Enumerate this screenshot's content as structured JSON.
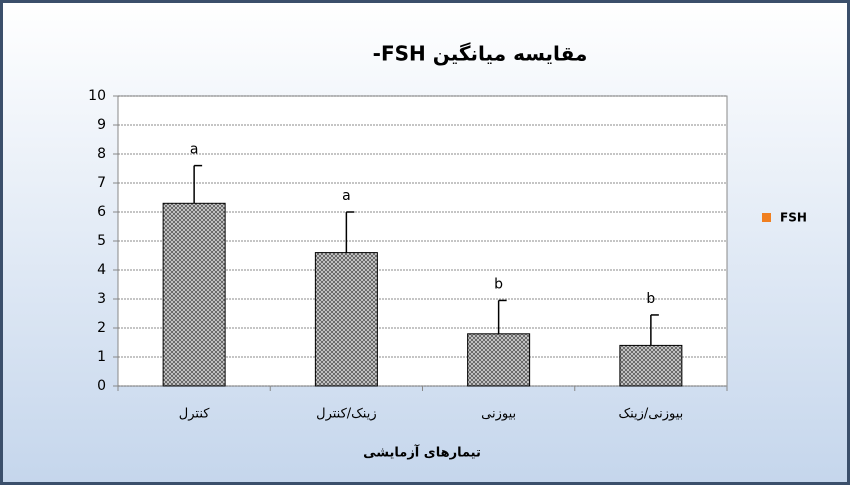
{
  "chart_data": {
    "type": "bar",
    "title": "مقایسه میانگین FSH-",
    "x_label": "تیمارهای آزمایشی",
    "categories": [
      "کنترل",
      "زینک/کنترل",
      "بیوزنی",
      "بیوزنی/زینک"
    ],
    "series": [
      {
        "name": "FSH",
        "color": "#7f7f7f",
        "legend_color": "#f07f20",
        "values": [
          6.3,
          4.6,
          1.8,
          1.4
        ],
        "errors": [
          1.3,
          1.4,
          1.15,
          1.05
        ],
        "value_labels": [
          "a",
          "a",
          "b",
          "b"
        ]
      }
    ],
    "ylim": [
      0,
      10
    ],
    "yticks": [
      0,
      1,
      2,
      3,
      4,
      5,
      6,
      7,
      8,
      9,
      10
    ],
    "grid": true,
    "legend": "right"
  }
}
